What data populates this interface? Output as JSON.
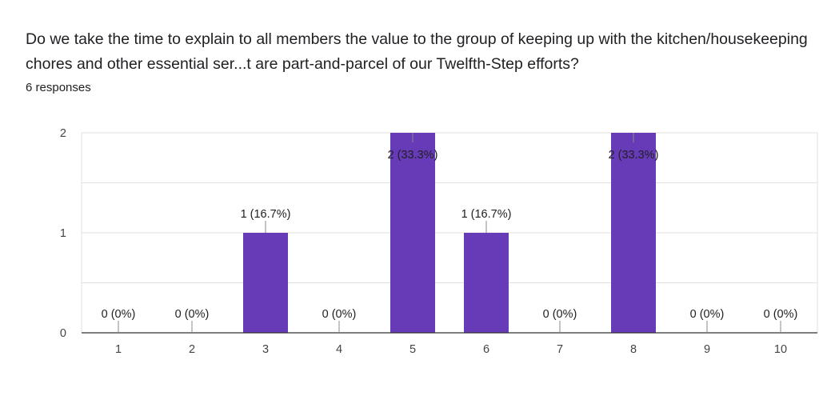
{
  "question": {
    "title": "Do we take the time to explain to all members the value to the group of keeping up with the kitchen/housekeeping chores and other essential ser...t are part-and-parcel of our Twelfth-Step efforts?",
    "responses": "6 responses"
  },
  "colors": {
    "bar": "#673ab7",
    "grid": "#e0e0e0",
    "axis": "#333333",
    "leader": "#888888"
  },
  "chart_data": {
    "type": "bar",
    "categories": [
      "1",
      "2",
      "3",
      "4",
      "5",
      "6",
      "7",
      "8",
      "9",
      "10"
    ],
    "values": [
      0,
      0,
      1,
      0,
      2,
      1,
      0,
      2,
      0,
      0
    ],
    "data_labels": [
      "0 (0%)",
      "0 (0%)",
      "1 (16.7%)",
      "0 (0%)",
      "2 (33.3%)",
      "1 (16.7%)",
      "0 (0%)",
      "2 (33.3%)",
      "0 (0%)",
      "0 (0%)"
    ],
    "yticks": [
      "0",
      "1",
      "2"
    ],
    "ylim": [
      0,
      2
    ],
    "grid": true,
    "legend": "none"
  }
}
